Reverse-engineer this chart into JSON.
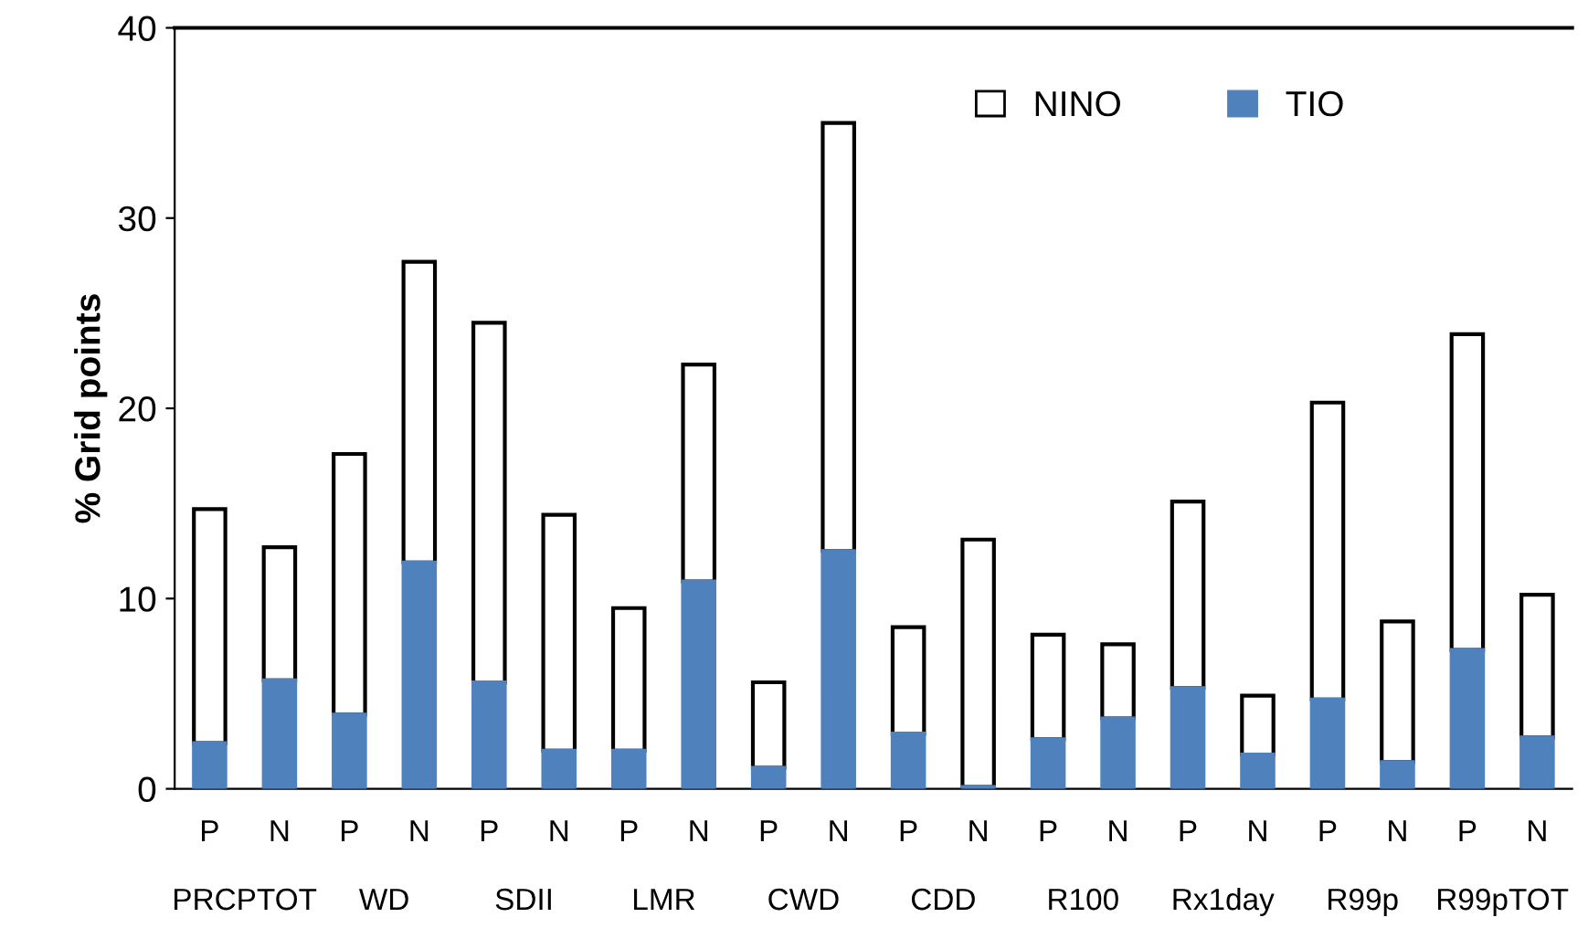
{
  "chart_data": {
    "type": "bar",
    "stacked": true,
    "ylabel": "% Grid points",
    "categories": [
      "P",
      "N",
      "P",
      "N",
      "P",
      "N",
      "P",
      "N",
      "P",
      "N",
      "P",
      "N",
      "P",
      "N",
      "P",
      "N",
      "P",
      "N",
      "P",
      "N"
    ],
    "annotations": [
      "PRCPTOT",
      "WD",
      "SDII",
      "LMR",
      "CWD",
      "CDD",
      "R100",
      "Rx1day",
      "R99p",
      "R99pTOT"
    ],
    "series": [
      {
        "name": "TIO",
        "color": "#4f81bd",
        "values": [
          2.4,
          5.7,
          3.9,
          11.9,
          5.6,
          2.0,
          2.0,
          10.9,
          1.1,
          12.5,
          2.9,
          0.1,
          2.6,
          3.7,
          5.3,
          1.8,
          4.7,
          1.4,
          7.3,
          2.7
        ]
      },
      {
        "name": "NINO",
        "color": "#ffffff",
        "values": [
          12.3,
          7.0,
          13.7,
          15.8,
          18.9,
          12.4,
          7.5,
          11.4,
          4.5,
          22.5,
          5.6,
          13.0,
          5.5,
          3.9,
          9.8,
          3.1,
          15.6,
          7.4,
          16.6,
          7.5
        ]
      }
    ],
    "ylim": [
      0,
      40
    ],
    "yticks": [
      0,
      10,
      20,
      30,
      40
    ],
    "grid": false,
    "legend": "top right"
  }
}
